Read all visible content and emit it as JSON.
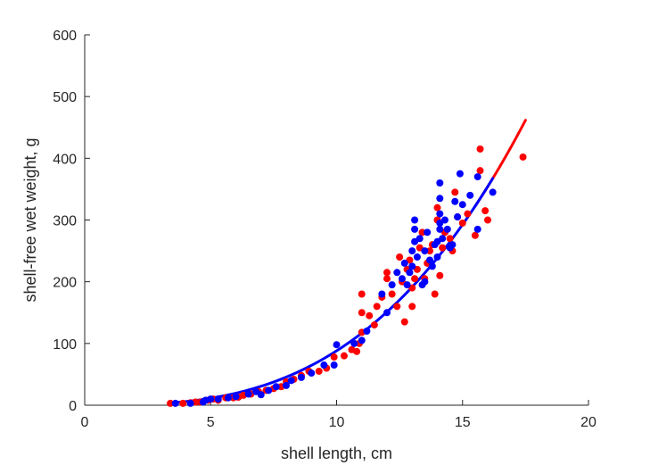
{
  "chart_data": {
    "type": "scatter",
    "xlabel": "shell length, cm",
    "ylabel": "shell-free wet weight, g",
    "xlim": [
      0,
      20
    ],
    "ylim": [
      0,
      600
    ],
    "xticks": [
      0,
      5,
      10,
      15,
      20
    ],
    "yticks": [
      0,
      100,
      200,
      300,
      400,
      500,
      600
    ],
    "grid": false,
    "colors": {
      "red": "#ff0000",
      "blue": "#0000ff",
      "axis": "#262626"
    },
    "series": [
      {
        "color": "#ff0000",
        "type": "scatter",
        "points": [
          [
            3.4,
            3
          ],
          [
            3.9,
            3
          ],
          [
            4.2,
            4
          ],
          [
            4.4,
            5
          ],
          [
            4.6,
            5
          ],
          [
            4.9,
            8
          ],
          [
            5.1,
            10
          ],
          [
            5.3,
            8
          ],
          [
            5.6,
            12
          ],
          [
            5.9,
            12
          ],
          [
            6.1,
            13
          ],
          [
            6.3,
            16
          ],
          [
            6.6,
            18
          ],
          [
            6.9,
            22
          ],
          [
            7.2,
            24
          ],
          [
            7.5,
            27
          ],
          [
            7.8,
            30
          ],
          [
            8.0,
            38
          ],
          [
            8.3,
            42
          ],
          [
            8.6,
            48
          ],
          [
            8.9,
            55
          ],
          [
            9.3,
            55
          ],
          [
            9.6,
            60
          ],
          [
            9.9,
            78
          ],
          [
            10.3,
            80
          ],
          [
            10.6,
            90
          ],
          [
            10.8,
            87
          ],
          [
            10.9,
            100
          ],
          [
            11.0,
            118
          ],
          [
            11.0,
            150
          ],
          [
            11.0,
            180
          ],
          [
            11.3,
            145
          ],
          [
            11.5,
            130
          ],
          [
            11.6,
            160
          ],
          [
            11.8,
            175
          ],
          [
            12.0,
            205
          ],
          [
            12.0,
            215
          ],
          [
            12.2,
            180
          ],
          [
            12.4,
            160
          ],
          [
            12.5,
            240
          ],
          [
            12.6,
            200
          ],
          [
            12.7,
            135
          ],
          [
            12.8,
            220
          ],
          [
            12.9,
            235
          ],
          [
            13.0,
            160
          ],
          [
            13.0,
            190
          ],
          [
            13.1,
            205
          ],
          [
            13.2,
            220
          ],
          [
            13.3,
            255
          ],
          [
            13.4,
            280
          ],
          [
            13.5,
            205
          ],
          [
            13.6,
            230
          ],
          [
            13.7,
            250
          ],
          [
            13.8,
            260
          ],
          [
            13.9,
            180
          ],
          [
            14.0,
            300
          ],
          [
            14.0,
            320
          ],
          [
            14.1,
            210
          ],
          [
            14.2,
            255
          ],
          [
            14.3,
            280
          ],
          [
            14.5,
            270
          ],
          [
            14.6,
            250
          ],
          [
            14.7,
            345
          ],
          [
            14.8,
            305
          ],
          [
            15.0,
            295
          ],
          [
            15.2,
            310
          ],
          [
            15.5,
            275
          ],
          [
            15.7,
            380
          ],
          [
            15.7,
            415
          ],
          [
            15.9,
            315
          ],
          [
            16.0,
            300
          ],
          [
            17.4,
            402
          ]
        ]
      },
      {
        "color": "#0000ff",
        "type": "scatter",
        "points": [
          [
            3.6,
            3
          ],
          [
            4.2,
            3
          ],
          [
            4.7,
            5
          ],
          [
            4.8,
            8
          ],
          [
            5.0,
            10
          ],
          [
            5.3,
            10
          ],
          [
            5.7,
            12
          ],
          [
            6.0,
            14
          ],
          [
            6.5,
            18
          ],
          [
            6.8,
            22
          ],
          [
            7.0,
            17
          ],
          [
            7.3,
            24
          ],
          [
            7.6,
            30
          ],
          [
            8.0,
            32
          ],
          [
            8.2,
            40
          ],
          [
            8.6,
            45
          ],
          [
            9.0,
            52
          ],
          [
            9.5,
            65
          ],
          [
            9.9,
            65
          ],
          [
            10.0,
            98
          ],
          [
            10.7,
            100
          ],
          [
            11.0,
            105
          ],
          [
            11.2,
            120
          ],
          [
            11.8,
            180
          ],
          [
            12.0,
            150
          ],
          [
            12.2,
            195
          ],
          [
            12.4,
            215
          ],
          [
            12.6,
            205
          ],
          [
            12.7,
            230
          ],
          [
            12.8,
            195
          ],
          [
            12.9,
            215
          ],
          [
            13.0,
            225
          ],
          [
            13.0,
            250
          ],
          [
            13.1,
            265
          ],
          [
            13.1,
            285
          ],
          [
            13.1,
            300
          ],
          [
            13.2,
            240
          ],
          [
            13.3,
            270
          ],
          [
            13.4,
            195
          ],
          [
            13.5,
            200
          ],
          [
            13.5,
            250
          ],
          [
            13.6,
            280
          ],
          [
            13.7,
            235
          ],
          [
            13.8,
            225
          ],
          [
            13.9,
            260
          ],
          [
            14.0,
            240
          ],
          [
            14.0,
            265
          ],
          [
            14.1,
            285
          ],
          [
            14.1,
            295
          ],
          [
            14.1,
            310
          ],
          [
            14.1,
            335
          ],
          [
            14.1,
            360
          ],
          [
            14.2,
            270
          ],
          [
            14.3,
            300
          ],
          [
            14.4,
            285
          ],
          [
            14.5,
            255
          ],
          [
            14.6,
            260
          ],
          [
            14.7,
            330
          ],
          [
            14.8,
            305
          ],
          [
            14.9,
            375
          ],
          [
            15.0,
            325
          ],
          [
            15.3,
            340
          ],
          [
            15.6,
            285
          ],
          [
            15.6,
            370
          ],
          [
            16.2,
            345
          ]
        ]
      },
      {
        "color": "#ff0000",
        "type": "line",
        "x_range": [
          15.5,
          17.5
        ],
        "model": {
          "a": 0.0966,
          "b": 2.96
        }
      },
      {
        "color": "#0000ff",
        "type": "line",
        "x_range": [
          3.5,
          16.2
        ],
        "model": {
          "a": 0.0966,
          "b": 2.96
        }
      }
    ]
  }
}
